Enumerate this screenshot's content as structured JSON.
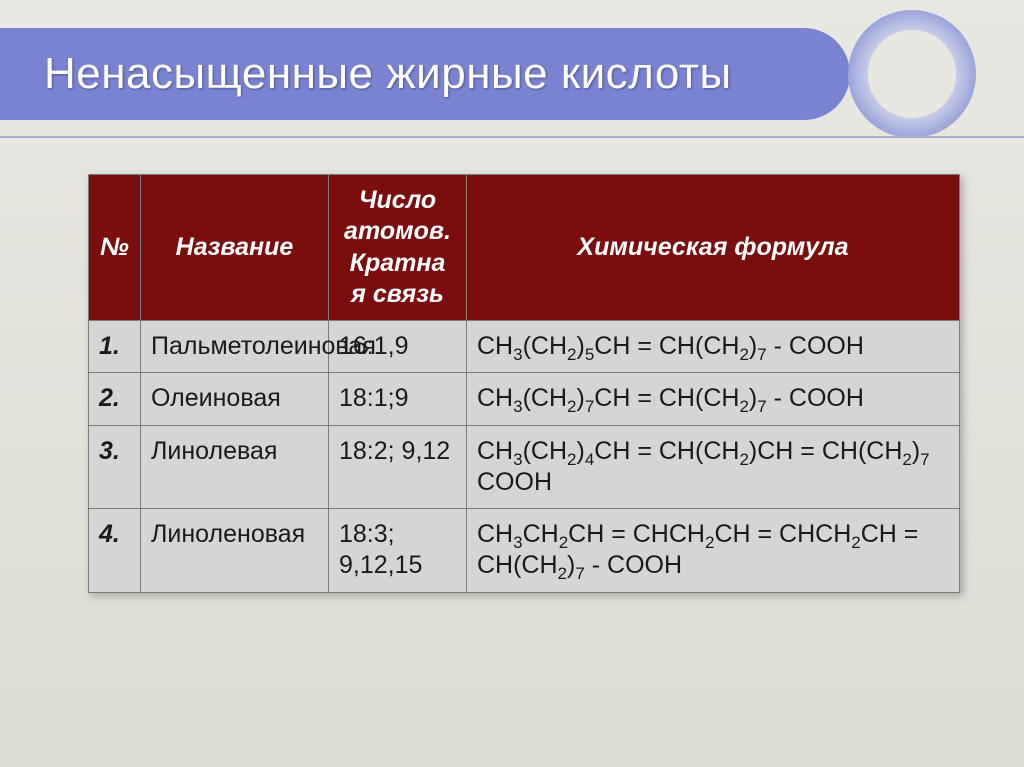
{
  "slide": {
    "title": "Ненасыщенные жирные кислоты",
    "accent_color": "#7a83d2",
    "header_bg": "#7a0d0d",
    "row_bg": "#d5d5d5",
    "border_color": "#7c7c7c",
    "title_font_size_pt": 33,
    "cell_font_size_pt": 19
  },
  "table": {
    "columns": [
      {
        "key": "num",
        "label": "№"
      },
      {
        "key": "name",
        "label": "Название"
      },
      {
        "key": "atoms",
        "label_html": "Число атомов. Кратная связь"
      },
      {
        "key": "formula",
        "label": "Химическая формула"
      }
    ],
    "header_atoms_lines": [
      "Число",
      "атомов.",
      "Кратна",
      "я связь"
    ],
    "rows": [
      {
        "num": "1.",
        "name": "Пальметолеиновая",
        "atoms": "16:1,9",
        "formula_html": "CH<span class=\"sub\">3</span>(CH<span class=\"sub\">2</span>)<span class=\"sub\">5</span>CH = CH(CH<span class=\"sub\">2</span>)<span class=\"sub\">7</span> - COOH"
      },
      {
        "num": "2.",
        "name": "Олеиновая",
        "atoms": "18:1;9",
        "formula_html": "CH<span class=\"sub\">3</span>(CH<span class=\"sub\">2</span>)<span class=\"sub\">7</span>CH = CH(CH<span class=\"sub\">2</span>)<span class=\"sub\">7</span> - COOH"
      },
      {
        "num": "3.",
        "name": "Линолевая",
        "atoms": "18:2; 9,12",
        "formula_html": "CH<span class=\"sub\">3</span>(CH<span class=\"sub\">2</span>)<span class=\"sub\">4</span>CH = CH(CH<span class=\"sub\">2</span>)CH = CH(CH<span class=\"sub\">2</span>)<span class=\"sub\">7</span> COOH"
      },
      {
        "num": "4.",
        "name": "Линоленовая",
        "atoms": "18:3; 9,12,15",
        "formula_html": "CH<span class=\"sub\">3</span>CH<span class=\"sub\">2</span>CH = CHCH<span class=\"sub\">2</span>CH = CHCH<span class=\"sub\">2</span>CH = CH(CH<span class=\"sub\">2</span>)<span class=\"sub\">7</span> - COOH"
      }
    ]
  }
}
